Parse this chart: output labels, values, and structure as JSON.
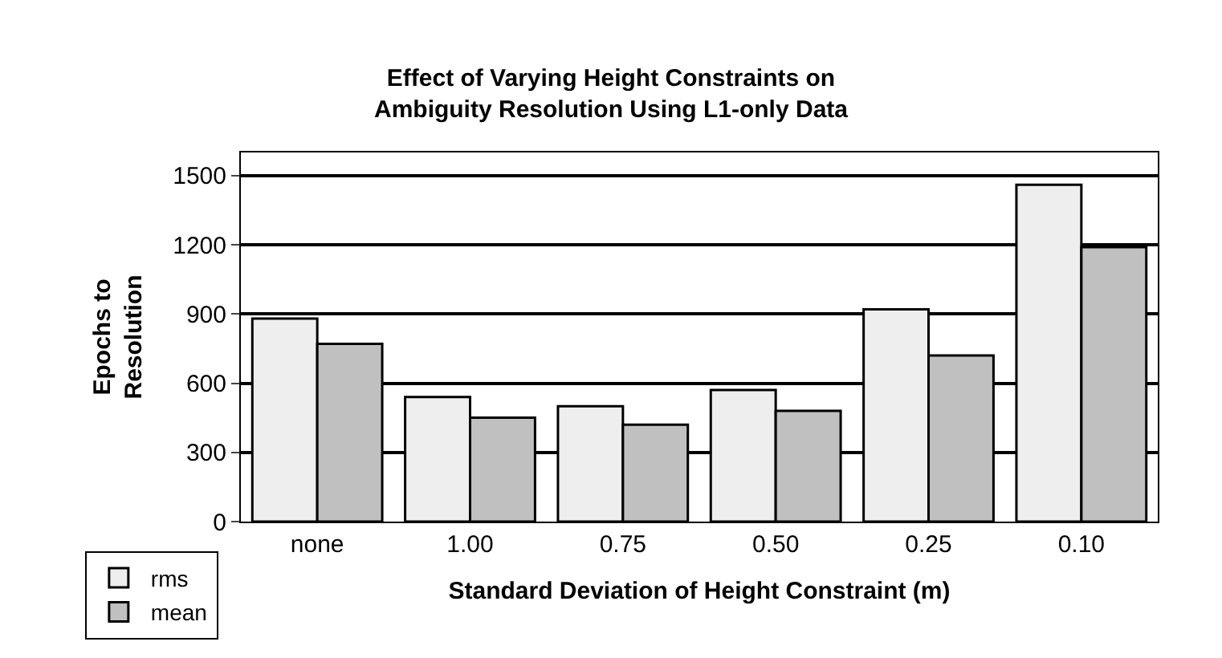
{
  "chart_data": {
    "type": "bar",
    "title": "Effect of Varying Height Constraints on Ambiguity Resolution Using L1-only Data",
    "xlabel": "Standard Deviation of Height Constraint (m)",
    "ylabel": "Epochs to Resolution",
    "categories": [
      "none",
      "1.00",
      "0.75",
      "0.50",
      "0.25",
      "0.10"
    ],
    "series": [
      {
        "name": "rms",
        "color": "#eeeeee",
        "values": [
          880,
          540,
          500,
          570,
          920,
          1460
        ]
      },
      {
        "name": "mean",
        "color": "#c0c0c0",
        "values": [
          770,
          450,
          420,
          480,
          720,
          1190
        ]
      }
    ],
    "ylim": [
      0,
      1600
    ],
    "yticks": [
      0,
      300,
      600,
      900,
      1200,
      1500
    ],
    "grid": "y",
    "legend": "bottom left"
  }
}
